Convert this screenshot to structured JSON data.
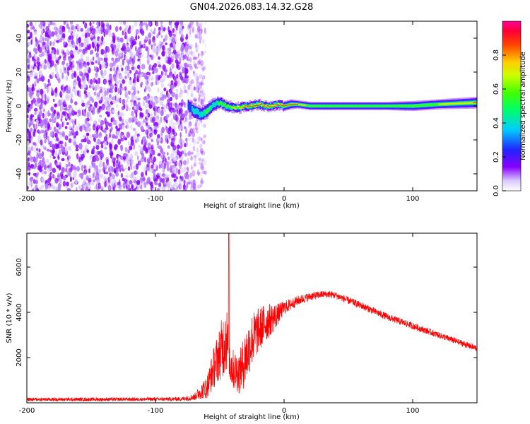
{
  "figure_title": "GN04.2026.083.14.32.G28",
  "colors": {
    "snr_line": "#ff0000",
    "scatter_dots": "#8800ff",
    "axis": "#000000"
  },
  "chart_data": [
    {
      "type": "heatmap",
      "name": "spectrogram",
      "title": "",
      "xlabel": "Height of straight line (km)",
      "ylabel": "Frequency (Hz)",
      "xlim": [
        -200,
        150
      ],
      "ylim": [
        -50,
        50
      ],
      "xticks": [
        -200,
        -100,
        0,
        100
      ],
      "xtick_labels": [
        "-200",
        "-100",
        "0",
        "100"
      ],
      "yticks": [
        -40,
        -20,
        0,
        20,
        40
      ],
      "ytick_labels": [
        "-40",
        "-20",
        "0",
        "20",
        "40"
      ],
      "noise_region_x": [
        -200,
        -65
      ],
      "ridge": {
        "x": [
          -75,
          -70,
          -65,
          -60,
          -55,
          -50,
          -45,
          -40,
          -35,
          -30,
          -25,
          -20,
          -15,
          -10,
          -5,
          0,
          5,
          10,
          20,
          40,
          60,
          80,
          100,
          120,
          150
        ],
        "frequency": [
          0,
          -3,
          -5,
          -3,
          1,
          2,
          0,
          -1,
          -1,
          0,
          0,
          1,
          0,
          0,
          1,
          0,
          1,
          1,
          0,
          0,
          0,
          0,
          0,
          1,
          2
        ],
        "width_hz": [
          8,
          9,
          9,
          9,
          8,
          7,
          7,
          6,
          6,
          6,
          6,
          6,
          6,
          6,
          6,
          6,
          6,
          5,
          5,
          5,
          5,
          5,
          6,
          6,
          7
        ],
        "peak_amplitude": [
          0.3,
          0.45,
          0.5,
          0.55,
          0.5,
          0.55,
          0.6,
          0.75,
          0.85,
          0.9,
          0.95,
          0.95,
          0.95,
          0.9,
          0.9,
          1.0,
          0.95,
          0.9,
          0.6,
          0.55,
          0.55,
          0.55,
          0.6,
          0.7,
          0.9
        ]
      },
      "colorbar": {
        "label": "Normalized spectral amplitude",
        "range": [
          0,
          1
        ],
        "ticks": [
          0.0,
          0.2,
          0.4,
          0.6,
          0.8
        ],
        "tick_labels": [
          "0.0",
          "0.2",
          "0.4",
          "0.6",
          "0.8"
        ]
      }
    },
    {
      "type": "line",
      "name": "snr",
      "title": "",
      "xlabel": "Height of straight line (km)",
      "ylabel": "SNR (10 * v/v)",
      "xlim": [
        -200,
        150
      ],
      "ylim": [
        0,
        7500
      ],
      "xticks": [
        -200,
        -100,
        0,
        100
      ],
      "xtick_labels": [
        "-200",
        "-100",
        "0",
        "100"
      ],
      "yticks": [
        2000,
        4000,
        6000
      ],
      "ytick_labels": [
        "2000",
        "4000",
        "6000"
      ],
      "series": [
        {
          "name": "SNR",
          "x": [
            -200,
            -150,
            -100,
            -80,
            -70,
            -60,
            -55,
            -50,
            -47,
            -45,
            -43,
            -40,
            -35,
            -30,
            -25,
            -20,
            -15,
            -10,
            -5,
            0,
            10,
            20,
            30,
            35,
            40,
            60,
            80,
            100,
            120,
            150
          ],
          "values": [
            150,
            150,
            160,
            170,
            250,
            700,
            1500,
            2200,
            2600,
            3000,
            2000,
            1500,
            1300,
            2000,
            2800,
            3200,
            3500,
            3700,
            3900,
            4200,
            4500,
            4700,
            4800,
            4800,
            4750,
            4300,
            3800,
            3400,
            3000,
            2400
          ],
          "noise_amp": [
            80,
            80,
            80,
            90,
            150,
            500,
            900,
            1200,
            1500,
            1600,
            1200,
            900,
            900,
            1300,
            1200,
            1000,
            900,
            700,
            500,
            300,
            220,
            180,
            160,
            160,
            160,
            160,
            160,
            150,
            140,
            140
          ]
        }
      ],
      "spike": {
        "x": -43,
        "value": 7600
      }
    }
  ]
}
